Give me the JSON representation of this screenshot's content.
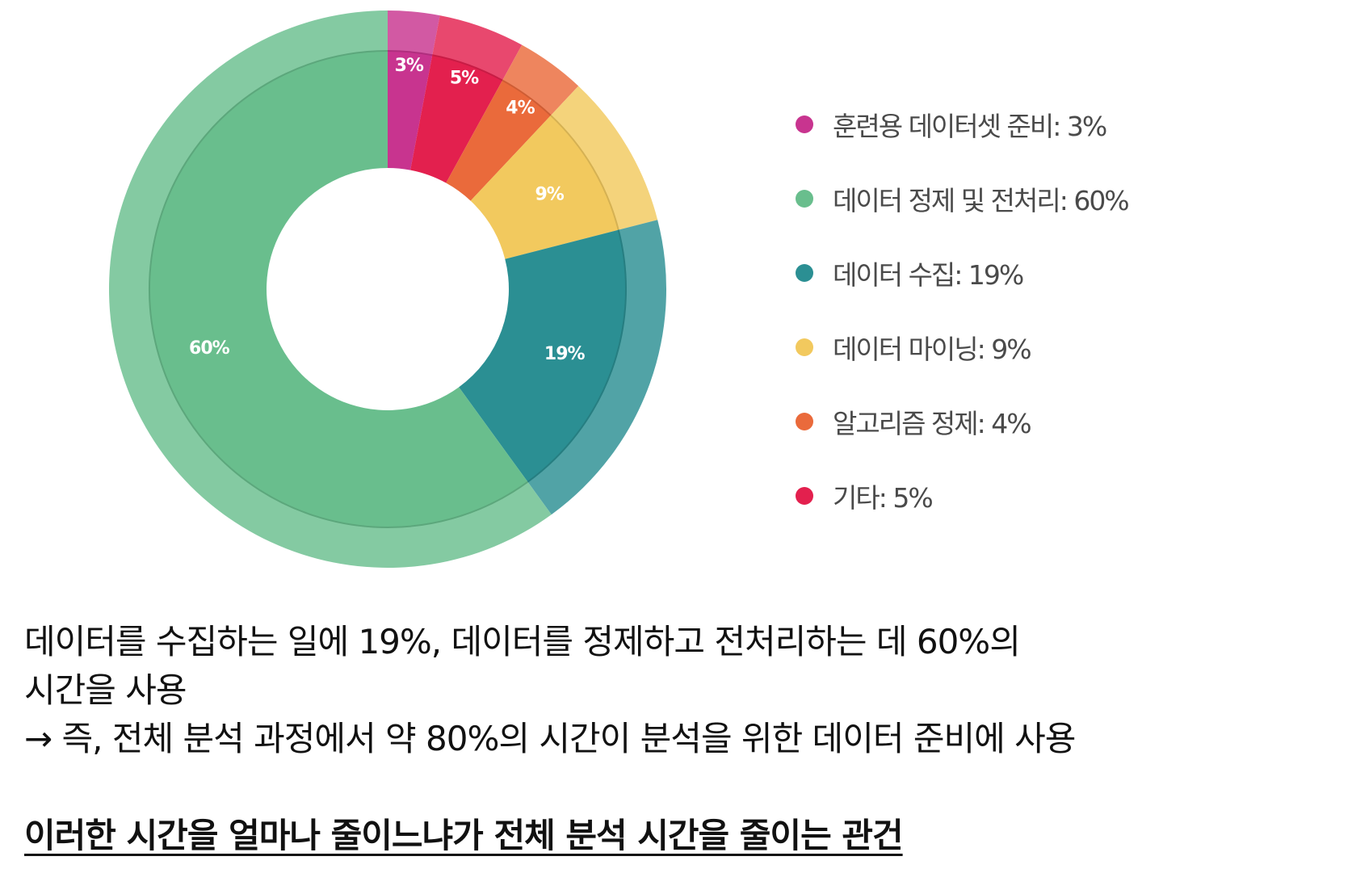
{
  "chart_data": {
    "type": "pie",
    "variant": "donut",
    "title": "",
    "slices": [
      {
        "label": "훈련용 데이터셋 준비",
        "value": 3,
        "value_label": "3%",
        "color": "#c8348f"
      },
      {
        "label": "기타",
        "value": 5,
        "value_label": "5%",
        "color": "#e3204e"
      },
      {
        "label": "알고리즘 정제",
        "value": 4,
        "value_label": "4%",
        "color": "#ea6a3b"
      },
      {
        "label": "데이터 마이닝",
        "value": 9,
        "value_label": "9%",
        "color": "#f2c95e"
      },
      {
        "label": "데이터 수집",
        "value": 19,
        "value_label": "19%",
        "color": "#2b8f93"
      },
      {
        "label": "데이터 정제 및 전처리",
        "value": 60,
        "value_label": "60%",
        "color": "#69be8d"
      }
    ],
    "legend": [
      {
        "text": "훈련용 데이터셋 준비: 3%",
        "color": "#c8348f"
      },
      {
        "text": "데이터 정제 및 전처리: 60%",
        "color": "#69be8d"
      },
      {
        "text": "데이터 수집: 19%",
        "color": "#2b8f93"
      },
      {
        "text": "데이터 마이닝: 9%",
        "color": "#f2c95e"
      },
      {
        "text": "알고리즘 정제: 4%",
        "color": "#ea6a3b"
      },
      {
        "text": "기타: 5%",
        "color": "#e3204e"
      }
    ],
    "legend_position": "right"
  },
  "caption": {
    "line1": "데이터를 수집하는 일에 19%, 데이터를 정제하고 전처리하는 데 60%의",
    "line2": "시간을 사용",
    "line3": "→ 즉, 전체 분석 과정에서 약 80%의 시간이 분석을 위한 데이터 준비에 사용",
    "emphasis": "이러한 시간을 얼마나 줄이느냐가 전체 분석 시간을 줄이는 관건"
  }
}
